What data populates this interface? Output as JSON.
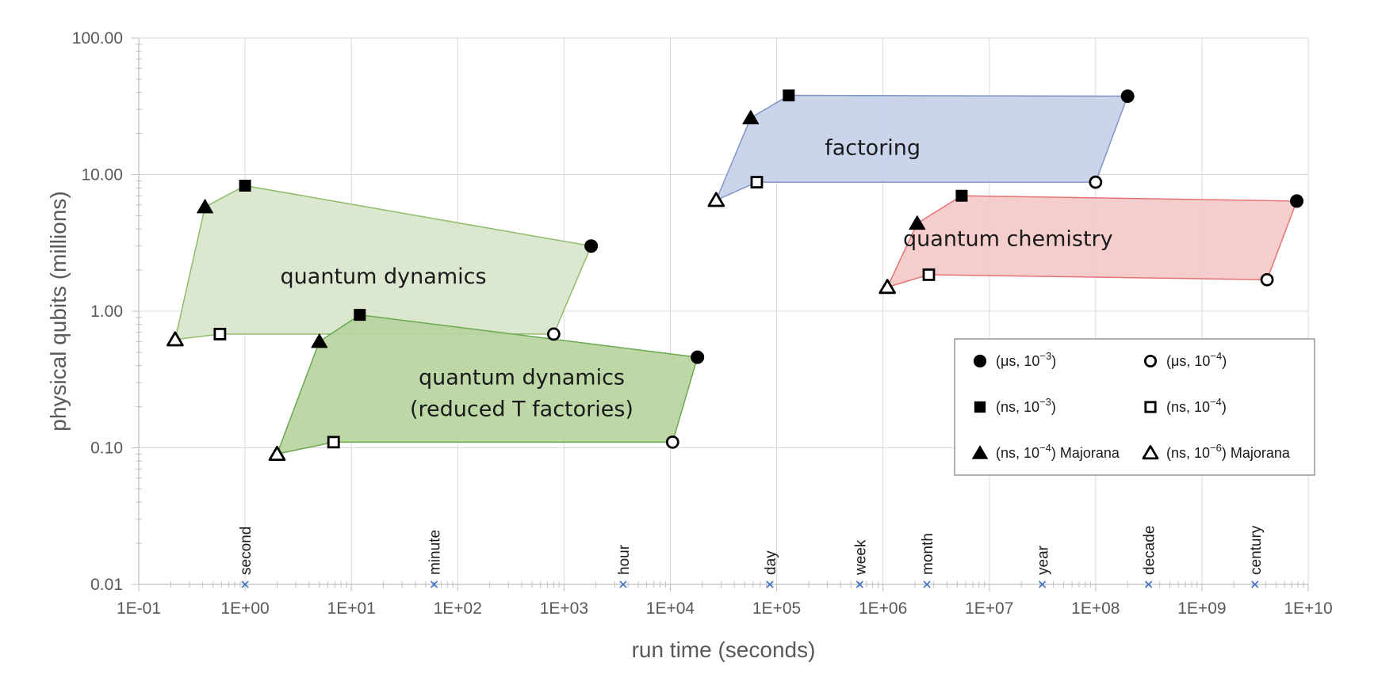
{
  "chart_data": {
    "type": "scatter",
    "xlabel": "run time (seconds)",
    "ylabel": "physical qubits (millions)",
    "x_scale": "log",
    "y_scale": "log",
    "xlim": [
      0.1,
      10000000000
    ],
    "ylim": [
      0.01,
      100
    ],
    "x_ticks": [
      "1E-01",
      "1E+00",
      "1E+01",
      "1E+02",
      "1E+03",
      "1E+04",
      "1E+05",
      "1E+06",
      "1E+07",
      "1E+08",
      "1E+09",
      "1E+10"
    ],
    "y_ticks": [
      "0.01",
      "0.10",
      "1.00",
      "10.00",
      "100.00"
    ],
    "grid": true,
    "legend_position": "bottom-right",
    "time_markers": [
      {
        "label": "second",
        "x": 1
      },
      {
        "label": "minute",
        "x": 60
      },
      {
        "label": "hour",
        "x": 3600
      },
      {
        "label": "day",
        "x": 86400
      },
      {
        "label": "week",
        "x": 604800
      },
      {
        "label": "month",
        "x": 2592000
      },
      {
        "label": "year",
        "x": 31536000
      },
      {
        "label": "decade",
        "x": 315360000
      },
      {
        "label": "century",
        "x": 3153600000
      }
    ],
    "regions": [
      {
        "label": [
          "quantum dynamics"
        ],
        "fill": "#d6e4c8",
        "stroke": "#8fbc6a",
        "label_at": [
          20,
          1.6
        ],
        "points": [
          {
            "marker": "triangle-open",
            "x": 0.22,
            "y": 0.62
          },
          {
            "marker": "square-open",
            "x": 0.58,
            "y": 0.68
          },
          {
            "marker": "circle-open",
            "x": 800,
            "y": 0.68
          },
          {
            "marker": "circle-filled",
            "x": 1800,
            "y": 3.0
          },
          {
            "marker": "square-filled",
            "x": 1.0,
            "y": 8.3
          },
          {
            "marker": "triangle-filled",
            "x": 0.42,
            "y": 5.8
          }
        ]
      },
      {
        "label": [
          "quantum dynamics",
          "(reduced T factories)"
        ],
        "fill": "#b7d4a0",
        "stroke": "#6aa84f",
        "label_at": [
          400,
          0.29
        ],
        "points": [
          {
            "marker": "triangle-open",
            "x": 2.0,
            "y": 0.09
          },
          {
            "marker": "square-open",
            "x": 6.8,
            "y": 0.11
          },
          {
            "marker": "circle-open",
            "x": 10500,
            "y": 0.11
          },
          {
            "marker": "circle-filled",
            "x": 18000,
            "y": 0.46
          },
          {
            "marker": "square-filled",
            "x": 12,
            "y": 0.94
          },
          {
            "marker": "triangle-filled",
            "x": 5.0,
            "y": 0.6
          }
        ]
      },
      {
        "label": [
          "factoring"
        ],
        "fill": "#c3cfe9",
        "stroke": "#8196c3",
        "label_at": [
          800000,
          14
        ],
        "points": [
          {
            "marker": "triangle-open",
            "x": 27000,
            "y": 6.5
          },
          {
            "marker": "square-open",
            "x": 65000,
            "y": 8.8
          },
          {
            "marker": "circle-open",
            "x": 100000000,
            "y": 8.8
          },
          {
            "marker": "circle-filled",
            "x": 200000000,
            "y": 37.5
          },
          {
            "marker": "square-filled",
            "x": 130000,
            "y": 38
          },
          {
            "marker": "triangle-filled",
            "x": 57000,
            "y": 26
          }
        ]
      },
      {
        "label": [
          "quantum chemistry"
        ],
        "fill": "#f5c6c6",
        "stroke": "#e57373",
        "label_at": [
          15000000,
          3.0
        ],
        "points": [
          {
            "marker": "triangle-open",
            "x": 1100000,
            "y": 1.5
          },
          {
            "marker": "square-open",
            "x": 2700000,
            "y": 1.85
          },
          {
            "marker": "circle-open",
            "x": 4100000000,
            "y": 1.7
          },
          {
            "marker": "circle-filled",
            "x": 7800000000,
            "y": 6.4
          },
          {
            "marker": "square-filled",
            "x": 5500000,
            "y": 7.0
          },
          {
            "marker": "triangle-filled",
            "x": 2100000,
            "y": 4.4
          }
        ]
      }
    ],
    "legend": [
      {
        "marker": "circle-filled",
        "text": "(μs, 10",
        "exp": "−3",
        "suffix": ")"
      },
      {
        "marker": "circle-open",
        "text": "(μs, 10",
        "exp": "−4",
        "suffix": ")"
      },
      {
        "marker": "square-filled",
        "text": "(ns, 10",
        "exp": "−3",
        "suffix": ")"
      },
      {
        "marker": "square-open",
        "text": "(ns, 10",
        "exp": "−4",
        "suffix": ")"
      },
      {
        "marker": "triangle-filled",
        "text": "(ns, 10",
        "exp": "−4",
        "suffix": ") Majorana"
      },
      {
        "marker": "triangle-open",
        "text": "(ns, 10",
        "exp": "−6",
        "suffix": ") Majorana"
      }
    ]
  },
  "colors": {
    "grid": "#d9d9d9",
    "axis": "#bfbfbf",
    "text": "#595959",
    "time_marker": "#4472c4"
  }
}
